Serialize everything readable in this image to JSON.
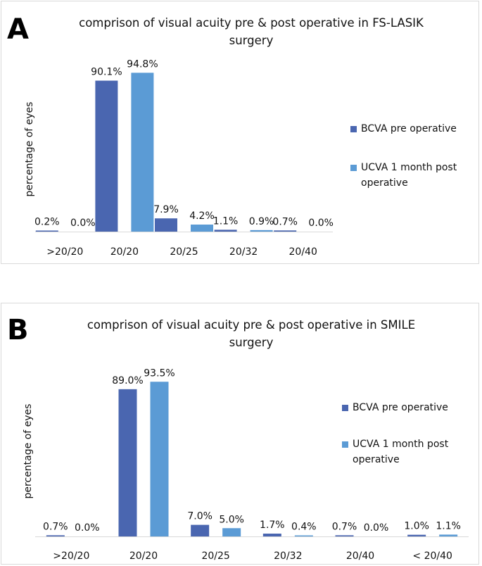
{
  "colors": {
    "pre": "#4a66b0",
    "post": "#5b9bd5",
    "axis": "#d9d9d9"
  },
  "panels": [
    {
      "letter": "A",
      "title_line1": "comprison of visual acuity pre & post operative in FS-LASIK",
      "title_line2": "surgery"
    },
    {
      "letter": "B",
      "title_line1": "comprison of visual acuity pre & post operative in SMILE",
      "title_line2": "surgery"
    }
  ],
  "chart_data": [
    {
      "type": "bar",
      "title": "comprison of visual acuity pre & post operative in FS-LASIK surgery",
      "ylabel": "percentage of eyes",
      "xlabel": "",
      "categories": [
        ">20/20",
        "20/20",
        "20/25",
        "20/32",
        "20/40"
      ],
      "series": [
        {
          "name": "BCVA pre operative",
          "values": [
            0.2,
            90.1,
            7.9,
            1.1,
            0.7
          ],
          "labels": [
            "0.2%",
            "90.1%",
            "7.9%",
            "1.1%",
            "0.7%"
          ]
        },
        {
          "name": "UCVA 1 month post operative",
          "values": [
            0.0,
            94.8,
            4.2,
            0.9,
            0.0
          ],
          "labels": [
            "0.0%",
            "94.8%",
            "4.2%",
            "0.9%",
            "0.0%"
          ]
        }
      ],
      "ylim": [
        0,
        100
      ],
      "grid": false,
      "legend": "right",
      "legend_lines": [
        [
          "BCVA pre operative"
        ],
        [
          "UCVA 1 month post",
          "operative"
        ]
      ]
    },
    {
      "type": "bar",
      "title": "comprison of visual acuity pre & post operative in SMILE surgery",
      "ylabel": "percentage of eyes",
      "xlabel": "",
      "categories": [
        ">20/20",
        "20/20",
        "20/25",
        "20/32",
        "20/40",
        "< 20/40"
      ],
      "series": [
        {
          "name": "BCVA pre operative",
          "values": [
            0.7,
            89.0,
            7.0,
            1.7,
            0.7,
            1.0
          ],
          "labels": [
            "0.7%",
            "89.0%",
            "7.0%",
            "1.7%",
            "0.7%",
            "1.0%"
          ]
        },
        {
          "name": "UCVA 1 month post operative",
          "values": [
            0.0,
            93.5,
            5.0,
            0.4,
            0.0,
            1.1
          ],
          "labels": [
            "0.0%",
            "93.5%",
            "5.0%",
            "0.4%",
            "0.0%",
            "1.1%"
          ]
        }
      ],
      "ylim": [
        0,
        100
      ],
      "grid": false,
      "legend": "right",
      "legend_lines": [
        [
          "BCVA pre operative"
        ],
        [
          "UCVA 1 month post",
          "operative"
        ]
      ]
    }
  ]
}
